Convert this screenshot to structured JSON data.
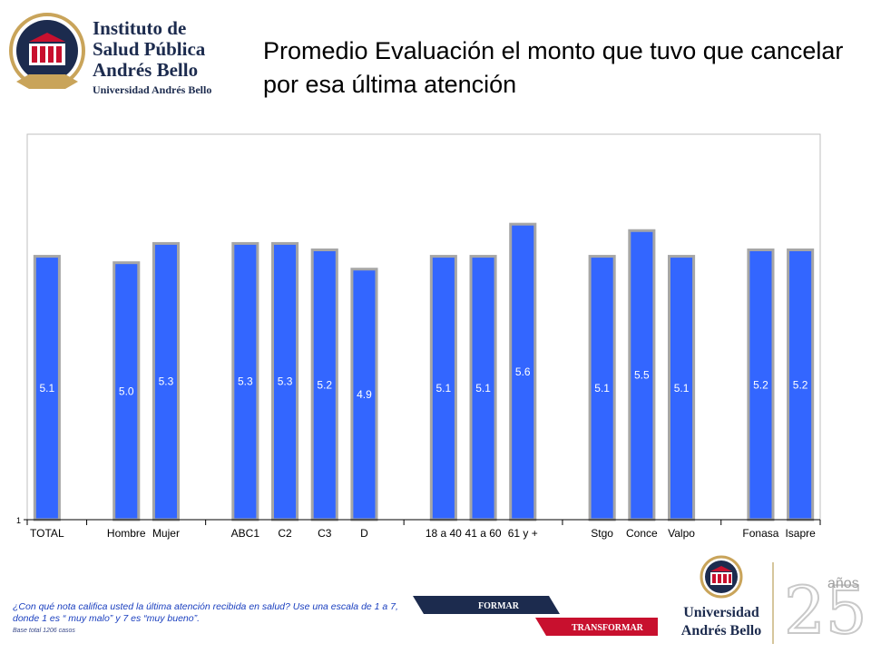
{
  "header": {
    "logo_lines": [
      "Instituto de",
      "Salud Pública",
      "Andrés Bello"
    ],
    "logo_sub": "Universidad Andrés Bello",
    "title": "Promedio Evaluación el monto que tuvo que cancelar por esa última atención"
  },
  "colors": {
    "bar": "#3366ff",
    "bar_border": "#a6a6a6",
    "footnote": "#1a3fbf",
    "brand": "#1c2b4e",
    "accent": "#c8102e"
  },
  "chart_data": {
    "type": "bar",
    "title": "",
    "xlabel": "",
    "ylabel": "",
    "ylim": [
      1,
      7
    ],
    "y_tick_labels": [
      "1"
    ],
    "grid": false,
    "legend": "none",
    "categories": [
      "TOTAL",
      "Hombre",
      "Mujer",
      "ABC1",
      "C2",
      "C3",
      "D",
      "18 a 40",
      "41 a 60",
      "61 y +",
      "Stgo",
      "Conce",
      "Valpo",
      "Fonasa",
      "Isapre"
    ],
    "values": [
      5.1,
      5.0,
      5.3,
      5.3,
      5.3,
      5.2,
      4.9,
      5.1,
      5.1,
      5.6,
      5.1,
      5.5,
      5.1,
      5.2,
      5.2
    ],
    "value_labels": [
      "5.1",
      "5.0",
      "5.3",
      "5.3",
      "5.3",
      "5.2",
      "4.9",
      "5.1",
      "5.1",
      "5.6",
      "5.1",
      "5.5",
      "5.1",
      "5.2",
      "5.2"
    ],
    "groups": [
      {
        "members": [
          "TOTAL"
        ]
      },
      {
        "members": [
          "Hombre",
          "Mujer"
        ]
      },
      {
        "members": [
          "ABC1",
          "C2",
          "C3",
          "D"
        ]
      },
      {
        "members": [
          "18 a 40",
          "41 a 60",
          "61 y +"
        ]
      },
      {
        "members": [
          "Stgo",
          "Conce",
          "Valpo"
        ]
      },
      {
        "members": [
          "Fonasa",
          "Isapre"
        ]
      }
    ]
  },
  "footer": {
    "question": "¿Con qué nota califica usted la última atención recibida en salud? Use una escala de 1 a 7, donde 1 es “ muy malo” y 7 es “muy bueno”.",
    "base": "Base total 1206  casos",
    "banner_top": "FORMAR",
    "banner_bottom": "TRANSFORMAR",
    "uab_line1": "Universidad",
    "uab_line2": "Andrés Bello",
    "anniv_number": "25",
    "anniv_word": "años"
  }
}
